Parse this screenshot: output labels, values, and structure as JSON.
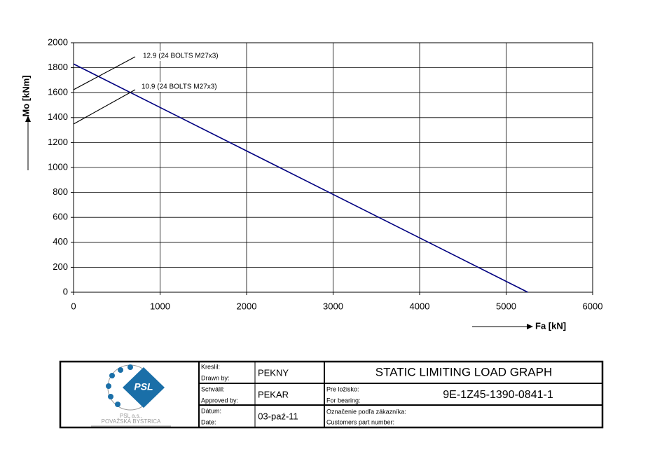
{
  "chart_data": {
    "type": "line",
    "x": [
      0,
      5250
    ],
    "values": [
      1830,
      0
    ],
    "color": "#000080",
    "xlim": [
      0,
      6000
    ],
    "xticks": [
      0,
      1000,
      2000,
      3000,
      4000,
      5000,
      6000
    ],
    "ylim": [
      0,
      2000
    ],
    "yticks": [
      0,
      200,
      400,
      600,
      800,
      1000,
      1200,
      1400,
      1600,
      1800,
      2000
    ],
    "grid": true,
    "xlabel": "Fa [kN]",
    "ylabel": "Mo [kNm]",
    "annotations": [
      "12.9 (24 BOLTS M27x3)",
      "10.9 (24 BOLTS M27x3)"
    ]
  },
  "title_block": {
    "logo": "PSL",
    "company": "PSL a.s.,",
    "city": "POVAŽSKÁ BYSTRICA",
    "drawn_label": "Kreslil:",
    "drawn_label_en": "Drawn by:",
    "drawn": "PEKNY",
    "approved_label": "Schválil:",
    "approved_label_en": "Approved by:",
    "approved": "PEKAR",
    "date_label": "Dátum:",
    "date_label_en": "Date:",
    "date": "03-paź-11",
    "title": "STATIC LIMITING LOAD GRAPH",
    "bearing_label": "Pre ložisko:",
    "bearing_label_en": "For bearing:",
    "bearing": "9E-1Z45-1390-0841-1",
    "part_label": "Označenie podľa zákazníka:",
    "part_label_en": "Customers part number:"
  }
}
